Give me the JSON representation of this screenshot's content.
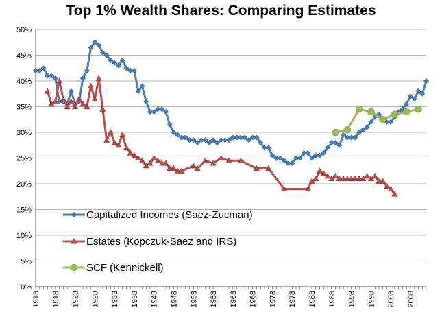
{
  "chart_data": {
    "type": "line",
    "title": "Top 1% Wealth Shares: Comparing Estimates",
    "xlabel": "",
    "ylabel": "",
    "xlim": [
      1913,
      2012
    ],
    "ylim": [
      0,
      50
    ],
    "y_tick_labels": [
      "0%",
      "5%",
      "10%",
      "15%",
      "20%",
      "25%",
      "30%",
      "35%",
      "40%",
      "45%",
      "50%"
    ],
    "x_tick_labels": [
      "1913",
      "1918",
      "1923",
      "1928",
      "1933",
      "1938",
      "1943",
      "1948",
      "1953",
      "1958",
      "1963",
      "1968",
      "1973",
      "1978",
      "1983",
      "1988",
      "1993",
      "1998",
      "2003",
      "2008"
    ],
    "grid": "horizontal",
    "legend_position": "bottom-left",
    "series": [
      {
        "name": "Capitalized Incomes (Saez-Zucman)",
        "color": "#4A7EBB",
        "marker": "diamond",
        "x": [
          1913,
          1914,
          1915,
          1916,
          1917,
          1918,
          1919,
          1920,
          1921,
          1922,
          1923,
          1924,
          1925,
          1926,
          1927,
          1928,
          1929,
          1930,
          1931,
          1932,
          1933,
          1934,
          1935,
          1936,
          1937,
          1938,
          1939,
          1940,
          1941,
          1942,
          1943,
          1944,
          1945,
          1946,
          1947,
          1948,
          1949,
          1950,
          1951,
          1952,
          1953,
          1954,
          1955,
          1956,
          1957,
          1958,
          1959,
          1960,
          1961,
          1962,
          1963,
          1964,
          1965,
          1966,
          1967,
          1968,
          1969,
          1970,
          1971,
          1972,
          1973,
          1974,
          1975,
          1976,
          1977,
          1978,
          1979,
          1980,
          1981,
          1982,
          1983,
          1984,
          1985,
          1986,
          1987,
          1988,
          1989,
          1990,
          1991,
          1992,
          1993,
          1994,
          1995,
          1996,
          1997,
          1998,
          1999,
          2000,
          2001,
          2002,
          2003,
          2004,
          2005,
          2006,
          2007,
          2008,
          2009,
          2010,
          2011,
          2012
        ],
        "y": [
          42,
          42,
          42.5,
          41,
          41,
          40.5,
          36,
          36,
          35.5,
          38,
          35.5,
          36,
          40.5,
          42,
          46.5,
          47.5,
          47,
          45.5,
          45,
          44,
          43.5,
          43,
          44,
          42.5,
          42,
          42,
          38,
          39,
          36,
          34,
          34,
          34.5,
          34.5,
          34,
          31.5,
          30,
          29.5,
          29,
          29,
          28.5,
          28.5,
          28,
          28.5,
          28.5,
          28,
          28.5,
          28,
          28.5,
          28.5,
          28.5,
          29,
          29,
          29,
          29,
          28.5,
          29,
          29,
          28,
          27,
          27,
          25.5,
          25,
          25,
          24.5,
          24,
          24,
          25,
          25,
          26,
          26,
          25,
          25.5,
          25.5,
          26,
          27,
          28,
          28,
          27.5,
          29.5,
          29,
          29,
          29,
          30,
          30.5,
          31,
          32,
          33,
          33.5,
          32.5,
          32,
          32,
          33,
          34,
          34.5,
          35.5,
          37,
          36.5,
          38,
          37.5,
          40
        ]
      },
      {
        "name": "Estates (Kopczuk-Saez and IRS)",
        "color": "#BE4B48",
        "marker": "triangle",
        "x": [
          1916,
          1917,
          1918,
          1919,
          1920,
          1921,
          1922,
          1923,
          1924,
          1925,
          1926,
          1927,
          1928,
          1929,
          1930,
          1931,
          1932,
          1933,
          1934,
          1935,
          1936,
          1937,
          1938,
          1939,
          1940,
          1941,
          1942,
          1943,
          1944,
          1945,
          1946,
          1947,
          1948,
          1949,
          1950,
          1953,
          1954,
          1956,
          1958,
          1960,
          1962,
          1965,
          1969,
          1972,
          1976,
          1982,
          1983,
          1984,
          1985,
          1986,
          1987,
          1988,
          1989,
          1990,
          1991,
          1992,
          1993,
          1994,
          1995,
          1996,
          1997,
          1998,
          1999,
          2000,
          2001,
          2002,
          2003,
          2004
        ],
        "y": [
          38,
          35.5,
          36,
          40,
          36.5,
          35,
          36,
          35,
          36.5,
          35.5,
          35,
          39,
          36.5,
          40.5,
          34.5,
          28.5,
          30,
          28,
          27.5,
          29.5,
          27,
          26,
          25.5,
          25,
          24.5,
          23.5,
          24,
          25,
          24.5,
          24,
          24,
          23,
          23,
          22.5,
          22.5,
          23.5,
          23,
          24.5,
          24,
          25,
          24.5,
          24.5,
          23,
          23,
          19,
          19,
          20.5,
          21,
          22.5,
          22,
          21.5,
          21,
          21.5,
          21,
          21,
          21,
          21,
          21,
          21,
          21,
          21.5,
          21,
          21.5,
          20.5,
          20.5,
          19.5,
          19,
          18
        ]
      },
      {
        "name": "SCF (Kennickell)",
        "color": "#9BBB59",
        "marker": "circle",
        "x": [
          1989,
          1992,
          1995,
          1998,
          2001,
          2004,
          2007,
          2010
        ],
        "y": [
          30,
          30.5,
          34.5,
          34,
          32.5,
          33.5,
          34,
          34.5
        ]
      }
    ]
  }
}
